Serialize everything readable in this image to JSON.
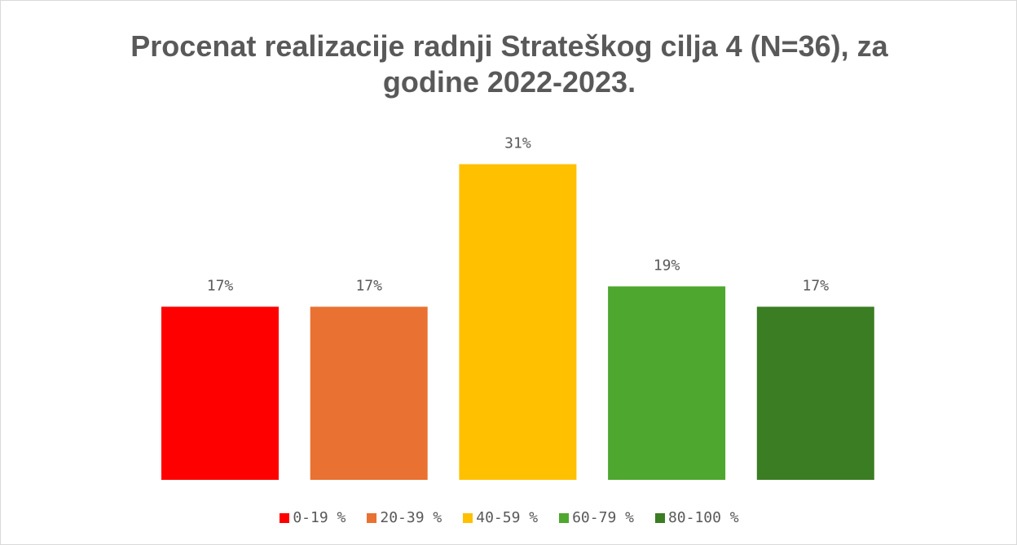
{
  "chart_data": {
    "type": "bar",
    "title": "Procenat realizacije radnji Strateškog cilja  4 (N=36), za godine 2022-2023.",
    "series": [
      {
        "name": "0-19 %",
        "color": "#ff0000",
        "values": [
          17
        ],
        "value_labels": [
          "17%"
        ]
      },
      {
        "name": "20-39 %",
        "color": "#e97132",
        "values": [
          17
        ],
        "value_labels": [
          "17%"
        ]
      },
      {
        "name": "40-59 %",
        "color": "#ffc000",
        "values": [
          31
        ],
        "value_labels": [
          "31%"
        ]
      },
      {
        "name": "60-79 %",
        "color": "#4ea72e",
        "values": [
          19
        ],
        "value_labels": [
          "19%"
        ]
      },
      {
        "name": "80-100 %",
        "color": "#3b7d23",
        "values": [
          17
        ],
        "value_labels": [
          "17%"
        ]
      }
    ],
    "legend": "bottom"
  }
}
